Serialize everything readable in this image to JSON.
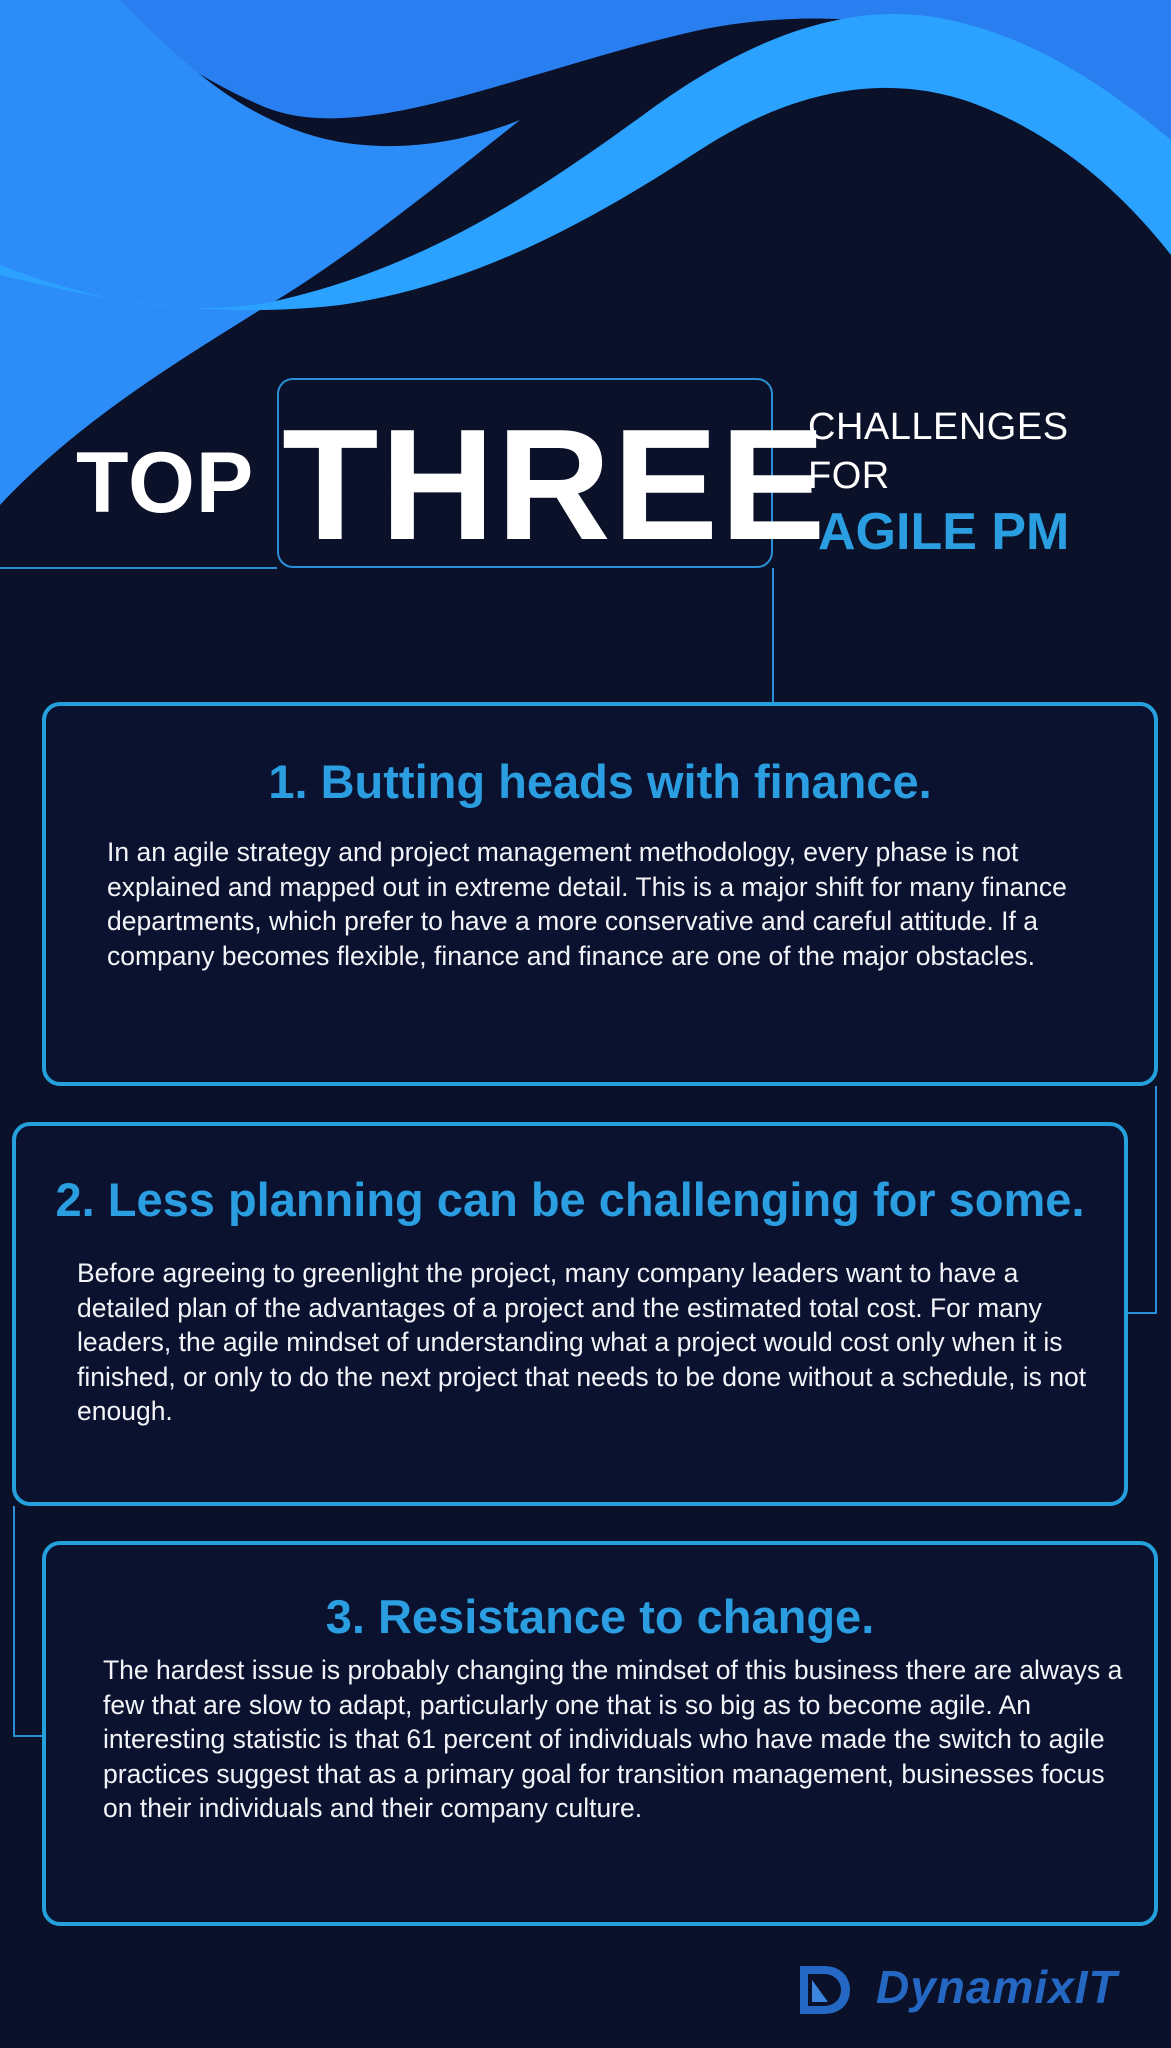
{
  "colors": {
    "background": "#0a1128",
    "accent": "#2a9ee0",
    "wave_light": "#2ba2ff",
    "wave_mid": "#2c86f5",
    "logo_blue": "#2468c4"
  },
  "header": {
    "top": "TOP",
    "three": "THREE",
    "challenges": "CHALLENGES",
    "for": "FOR",
    "agile_pm": "AGILE PM"
  },
  "cards": [
    {
      "title": "1. Butting heads with finance.",
      "body": "In an agile strategy and project management methodology, every phase is not explained and mapped out in extreme detail. This is a major shift for many finance departments, which prefer to have a more conservative and careful attitude. If a company becomes flexible, finance and finance are one of the major obstacles."
    },
    {
      "title": "2. Less planning can be challenging for some.",
      "body": "Before agreeing to greenlight the project, many company leaders want to have a detailed plan of the advantages of a project and the estimated total cost. For many leaders, the agile mindset of understanding what a project would cost only when it is finished, or only to do the next project that needs to be done without a schedule, is not enough."
    },
    {
      "title": "3. Resistance to change.",
      "body": "The hardest issue is probably changing the mindset of this business there are always a few that are slow to adapt, particularly one that is so big as to become agile. An interesting statistic is that 61 percent of individuals who have made the switch to agile practices suggest that as a primary goal for transition management, businesses focus on their individuals and their company culture."
    }
  ],
  "logo": {
    "icon": "dynamixit-logo-icon",
    "text": "DynamixIT"
  }
}
